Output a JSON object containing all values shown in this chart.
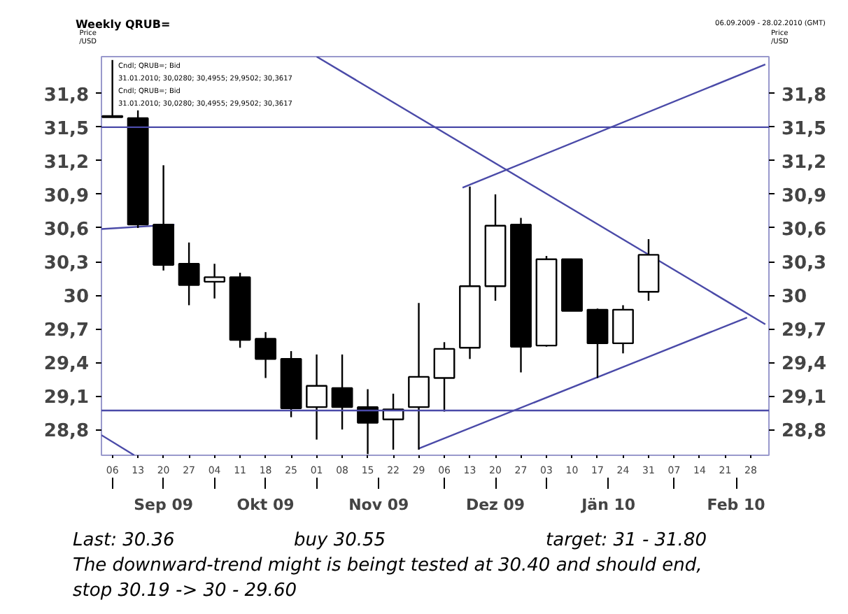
{
  "chart_data": {
    "type": "candlestick",
    "title": "Weekly QRUB=",
    "subtitle": "06.09.2009 - 28.02.2010 (GMT)",
    "ylabel": "Price /USD",
    "y2label": "Price /USD",
    "x": [
      "2009-09-06",
      "2009-09-13",
      "2009-09-20",
      "2009-09-27",
      "2009-10-04",
      "2009-10-11",
      "2009-10-18",
      "2009-10-25",
      "2009-11-01",
      "2009-11-08",
      "2009-11-15",
      "2009-11-22",
      "2009-11-29",
      "2009-12-06",
      "2009-12-13",
      "2009-12-20",
      "2009-12-27",
      "2010-01-03",
      "2010-01-10",
      "2010-01-17",
      "2010-01-24",
      "2010-01-31"
    ],
    "ohlc": [
      [
        31.6,
        32.1,
        31.59,
        31.59
      ],
      [
        31.58,
        31.65,
        30.6,
        30.63
      ],
      [
        30.63,
        31.16,
        30.22,
        30.27
      ],
      [
        30.28,
        30.47,
        29.91,
        30.09
      ],
      [
        30.12,
        30.28,
        29.97,
        30.16
      ],
      [
        30.16,
        30.2,
        29.53,
        29.6
      ],
      [
        29.61,
        29.67,
        29.26,
        29.43
      ],
      [
        29.43,
        29.5,
        28.91,
        28.99
      ],
      [
        29.0,
        29.47,
        28.71,
        29.19
      ],
      [
        29.17,
        29.47,
        28.8,
        29.0
      ],
      [
        29.0,
        29.16,
        28.58,
        28.86
      ],
      [
        28.89,
        29.12,
        28.62,
        28.98
      ],
      [
        29.0,
        29.93,
        28.62,
        29.27
      ],
      [
        29.26,
        29.58,
        28.96,
        29.52
      ],
      [
        29.53,
        30.97,
        29.43,
        30.08
      ],
      [
        30.08,
        30.9,
        29.95,
        30.62
      ],
      [
        30.63,
        30.69,
        29.31,
        29.54
      ],
      [
        29.55,
        30.35,
        29.54,
        30.32
      ],
      [
        30.32,
        30.32,
        29.86,
        29.86
      ],
      [
        29.87,
        29.88,
        29.26,
        29.57
      ],
      [
        29.57,
        29.91,
        29.48,
        29.87
      ],
      [
        30.03,
        30.5,
        29.95,
        30.36
      ]
    ],
    "series": [
      {
        "type": "line",
        "color": "#4a4aa8",
        "x": [
          "2009-11-01",
          "2010-03-04"
        ],
        "values": [
          32.13,
          29.74
        ]
      },
      {
        "type": "line",
        "color": "#4a4aa8",
        "x": [
          "2009-12-11",
          "2010-03-04"
        ],
        "values": [
          30.96,
          32.06
        ]
      },
      {
        "type": "line",
        "color": "#4a4aa8",
        "x": [
          "2009-11-29",
          "2010-02-27"
        ],
        "values": [
          28.63,
          29.8
        ]
      },
      {
        "type": "line",
        "color": "#4a4aa8",
        "x": [
          "2009-09-03",
          "2009-09-23"
        ],
        "values": [
          30.59,
          30.63
        ]
      },
      {
        "type": "line",
        "color": "#4a4aa8",
        "x": [
          "2009-09-03",
          "2009-09-12"
        ],
        "values": [
          28.75,
          28.57
        ]
      }
    ],
    "ref_lines": [
      {
        "axis": "y",
        "value": 31.5,
        "color": "#4a4aa8"
      },
      {
        "axis": "y",
        "value": 28.97,
        "color": "#4a4aa8"
      }
    ],
    "xlim": [
      "2009-09-03",
      "2010-03-05"
    ],
    "xticks": [
      {
        "value": "2009-09-06",
        "label": "06"
      },
      {
        "value": "2009-09-13",
        "label": "13"
      },
      {
        "value": "2009-09-20",
        "label": "20"
      },
      {
        "value": "2009-09-27",
        "label": "27"
      },
      {
        "value": "2009-10-04",
        "label": "04"
      },
      {
        "value": "2009-10-11",
        "label": "11"
      },
      {
        "value": "2009-10-18",
        "label": "18"
      },
      {
        "value": "2009-10-25",
        "label": "25"
      },
      {
        "value": "2009-11-01",
        "label": "01"
      },
      {
        "value": "2009-11-08",
        "label": "08"
      },
      {
        "value": "2009-11-15",
        "label": "15"
      },
      {
        "value": "2009-11-22",
        "label": "22"
      },
      {
        "value": "2009-11-29",
        "label": "29"
      },
      {
        "value": "2009-12-06",
        "label": "06"
      },
      {
        "value": "2009-12-13",
        "label": "13"
      },
      {
        "value": "2009-12-20",
        "label": "20"
      },
      {
        "value": "2009-12-27",
        "label": "27"
      },
      {
        "value": "2010-01-03",
        "label": "03"
      },
      {
        "value": "2010-01-10",
        "label": "10"
      },
      {
        "value": "2010-01-17",
        "label": "17"
      },
      {
        "value": "2010-01-24",
        "label": "24"
      },
      {
        "value": "2010-01-31",
        "label": "31"
      },
      {
        "value": "2010-02-07",
        "label": "07"
      },
      {
        "value": "2010-02-14",
        "label": "14"
      },
      {
        "value": "2010-02-21",
        "label": "21"
      },
      {
        "value": "2010-02-28",
        "label": "28"
      }
    ],
    "x2lim": [
      "2009-09-03",
      "2010-03-05"
    ],
    "x2ticks": [
      {
        "value": "2009-09-06",
        "label": null
      },
      {
        "value": "2009-09-20",
        "label": "Sep 09"
      },
      {
        "value": "2009-10-04",
        "label": null
      },
      {
        "value": "2009-10-18",
        "label": "Okt 09"
      },
      {
        "value": "2009-11-01",
        "label": null
      },
      {
        "value": "2009-11-18",
        "label": "Nov 09"
      },
      {
        "value": "2009-12-06",
        "label": null
      },
      {
        "value": "2009-12-20",
        "label": "Dez 09"
      },
      {
        "value": "2010-01-03",
        "label": null
      },
      {
        "value": "2010-01-20",
        "label": "Jän 10"
      },
      {
        "value": "2010-02-07",
        "label": null
      },
      {
        "value": "2010-02-24",
        "label": "Feb 10"
      }
    ],
    "ylim": [
      28.57,
      32.13
    ],
    "yticks": [
      {
        "value": 28.8,
        "label": "28,8"
      },
      {
        "value": 29.1,
        "label": "29,1"
      },
      {
        "value": 29.4,
        "label": "29,4"
      },
      {
        "value": 29.7,
        "label": "29,7"
      },
      30,
      {
        "value": 30.3,
        "label": "30,3"
      },
      {
        "value": 30.6,
        "label": "30,6"
      },
      {
        "value": 30.9,
        "label": "30,9"
      },
      {
        "value": 31.2,
        "label": "31,2"
      },
      {
        "value": 31.5,
        "label": "31,5"
      },
      {
        "value": 31.8,
        "label": "31,8"
      }
    ],
    "y2lim": [
      28.57,
      32.13
    ],
    "y2ticks": [
      {
        "value": 28.8,
        "label": "28,8"
      },
      {
        "value": 29.1,
        "label": "29,1"
      },
      {
        "value": 29.4,
        "label": "29,4"
      },
      {
        "value": 29.7,
        "label": "29,7"
      },
      30,
      {
        "value": 30.3,
        "label": "30,3"
      },
      {
        "value": 30.6,
        "label": "30,6"
      },
      {
        "value": 30.9,
        "label": "30,9"
      },
      {
        "value": 31.2,
        "label": "31,2"
      },
      {
        "value": 31.5,
        "label": "31,5"
      },
      {
        "value": 31.8,
        "label": "31,8"
      }
    ],
    "annotations": [
      "Cndl; QRUB=; Bid",
      "31.01.2010; 30,0280; 30,4955; 29,9502; 30,3617",
      "Cndl; QRUB=; Bid",
      "31.01.2010; 30,0280; 30,4955; 29,9502; 30,3617",
      "Last: 30.36",
      "buy 30.55",
      "target: 31 - 31.80",
      "The downward-trend might is beingt tested at 30.40 and should end,",
      "stop 30.19 -> 30 - 29.60"
    ],
    "grid": false
  }
}
